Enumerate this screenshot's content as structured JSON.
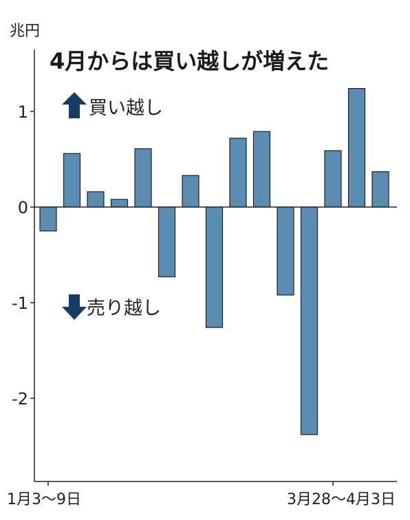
{
  "chart_data": {
    "type": "bar",
    "title": "4月からは買い越しが増えた",
    "ylabel": "兆円",
    "ylim": [
      -2.8,
      1.65
    ],
    "yticks": [
      1,
      0,
      -1,
      -2
    ],
    "ytick_labels": [
      "1",
      "0",
      "-1",
      "-2"
    ],
    "x_labels": [
      {
        "label": "1月3～9日",
        "index": 0
      },
      {
        "label": "3月28～4月3日",
        "index": 12
      }
    ],
    "values": [
      -0.25,
      0.56,
      0.16,
      0.08,
      0.61,
      -0.73,
      0.33,
      -1.26,
      0.72,
      0.79,
      -0.92,
      -2.38,
      0.59,
      1.24,
      0.37
    ],
    "bar_color": "#5b8db3",
    "annotations": {
      "buy": {
        "arrow": "up-arrow-icon",
        "text": "買い越し"
      },
      "sell": {
        "arrow": "down-arrow-icon",
        "text": "売り越し"
      }
    },
    "arrow_color": "#163c66"
  }
}
